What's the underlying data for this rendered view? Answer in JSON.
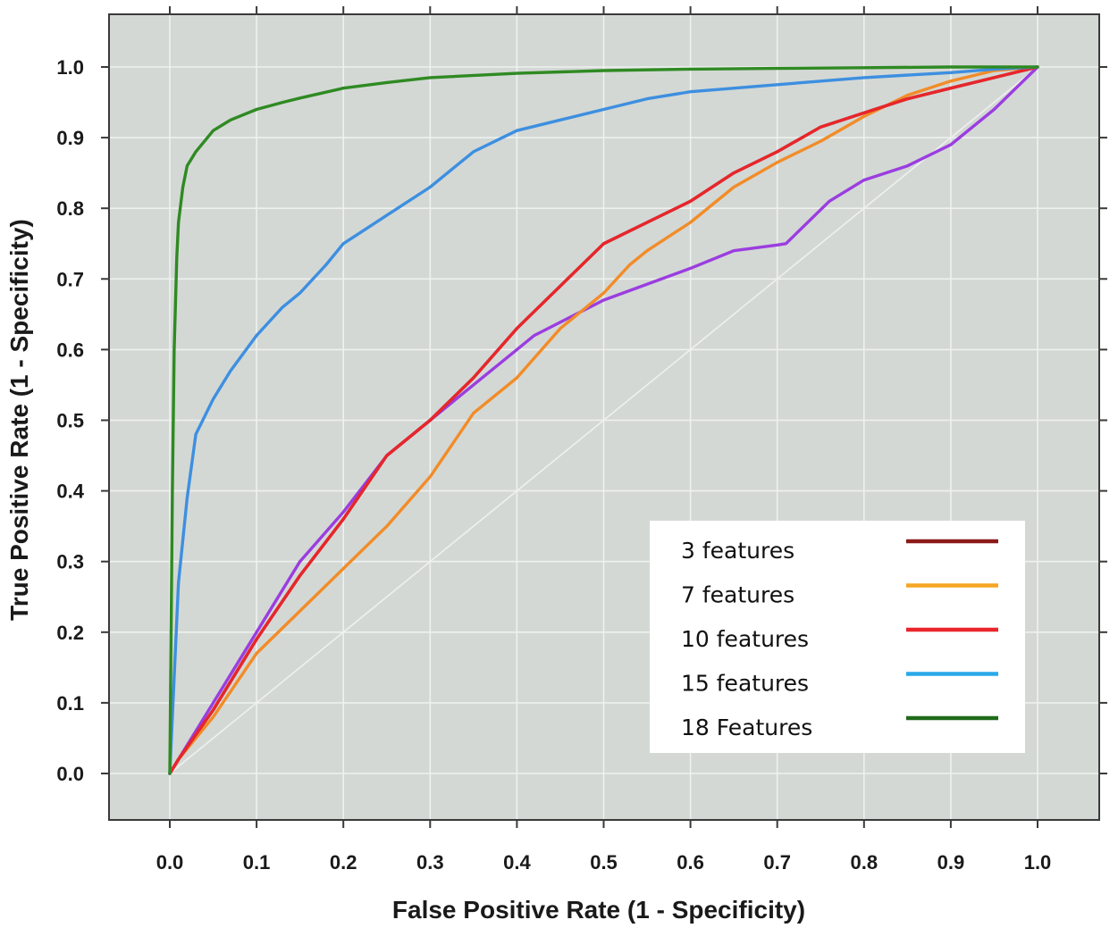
{
  "chart_data": {
    "type": "line",
    "title": "",
    "xlabel": "False Positive Rate (1 - Specificity)",
    "ylabel": "True Positive Rate (1 - Specificity)",
    "xlim": [
      0,
      1
    ],
    "ylim": [
      0,
      1
    ],
    "xticks": [
      "0.0",
      "0.1",
      "0.2",
      "0.3",
      "0.4",
      "0.5",
      "0.6",
      "0.7",
      "0.8",
      "0.9",
      "1.0"
    ],
    "yticks": [
      "0.0",
      "0.1",
      "0.2",
      "0.3",
      "0.4",
      "0.5",
      "0.6",
      "0.7",
      "0.8",
      "0.9",
      "1.0"
    ],
    "grid": true,
    "legend_position": "bottom-right",
    "background_color": "#d3d8d5",
    "grid_color": "#eef1ef",
    "series": [
      {
        "name": "3 features",
        "color": "#8b1a1a",
        "legend_color": "#8b1a1a",
        "x": [
          0,
          0.01,
          0.05,
          0.1,
          0.15,
          0.2,
          0.25,
          0.3,
          0.35,
          0.4,
          0.45,
          0.5,
          0.55,
          0.6,
          0.65,
          0.7,
          0.75,
          0.8,
          0.85,
          0.9,
          0.95,
          1.0
        ],
        "y": [
          0,
          0.02,
          0.09,
          0.19,
          0.28,
          0.36,
          0.45,
          0.5,
          0.56,
          0.63,
          0.69,
          0.75,
          0.78,
          0.81,
          0.85,
          0.88,
          0.915,
          0.935,
          0.955,
          0.97,
          0.985,
          1.0
        ]
      },
      {
        "name": "7 features",
        "color": "#f28c28",
        "legend_color": "#f5a623",
        "x": [
          0,
          0.01,
          0.05,
          0.1,
          0.15,
          0.2,
          0.25,
          0.3,
          0.35,
          0.4,
          0.45,
          0.5,
          0.53,
          0.55,
          0.6,
          0.65,
          0.7,
          0.75,
          0.8,
          0.85,
          0.9,
          0.95,
          1.0
        ],
        "y": [
          0,
          0.02,
          0.08,
          0.17,
          0.23,
          0.29,
          0.35,
          0.42,
          0.51,
          0.56,
          0.63,
          0.68,
          0.72,
          0.74,
          0.78,
          0.83,
          0.865,
          0.895,
          0.93,
          0.96,
          0.98,
          0.995,
          1.0
        ]
      },
      {
        "name": "10 features",
        "color": "#e8262b",
        "legend_color": "#e8262b",
        "x": [
          0,
          0.01,
          0.05,
          0.1,
          0.15,
          0.2,
          0.25,
          0.3,
          0.35,
          0.4,
          0.45,
          0.5,
          0.55,
          0.6,
          0.65,
          0.7,
          0.75,
          0.8,
          0.85,
          0.9,
          0.95,
          1.0
        ],
        "y": [
          0,
          0.02,
          0.09,
          0.19,
          0.28,
          0.36,
          0.45,
          0.5,
          0.56,
          0.63,
          0.69,
          0.75,
          0.78,
          0.81,
          0.85,
          0.88,
          0.915,
          0.935,
          0.955,
          0.97,
          0.985,
          1.0
        ]
      },
      {
        "name": "15 features",
        "color": "#3d8fe0",
        "legend_color": "#29a8e8",
        "x": [
          0,
          0.01,
          0.02,
          0.03,
          0.05,
          0.07,
          0.1,
          0.13,
          0.15,
          0.18,
          0.2,
          0.25,
          0.3,
          0.33,
          0.35,
          0.4,
          0.45,
          0.5,
          0.55,
          0.6,
          0.7,
          0.8,
          0.9,
          0.95,
          1.0
        ],
        "y": [
          0,
          0.27,
          0.39,
          0.48,
          0.53,
          0.57,
          0.62,
          0.66,
          0.68,
          0.72,
          0.75,
          0.79,
          0.83,
          0.86,
          0.88,
          0.91,
          0.925,
          0.94,
          0.955,
          0.965,
          0.975,
          0.985,
          0.992,
          0.997,
          1.0
        ]
      },
      {
        "name": "18 Features",
        "color": "#2f8a22",
        "legend_color": "#1f6b1a",
        "x": [
          0,
          0.003,
          0.005,
          0.008,
          0.01,
          0.015,
          0.02,
          0.03,
          0.05,
          0.07,
          0.1,
          0.13,
          0.15,
          0.2,
          0.25,
          0.3,
          0.4,
          0.5,
          0.6,
          0.7,
          0.8,
          0.9,
          1.0
        ],
        "y": [
          0,
          0.4,
          0.6,
          0.73,
          0.78,
          0.83,
          0.86,
          0.88,
          0.91,
          0.925,
          0.94,
          0.95,
          0.956,
          0.97,
          0.978,
          0.985,
          0.991,
          0.995,
          0.997,
          0.998,
          0.999,
          1.0,
          1.0
        ]
      },
      {
        "name": "",
        "color": "#9b3de0",
        "legend_color": "",
        "x": [
          0,
          0.01,
          0.05,
          0.1,
          0.15,
          0.2,
          0.25,
          0.3,
          0.35,
          0.4,
          0.42,
          0.5,
          0.6,
          0.65,
          0.7,
          0.71,
          0.76,
          0.8,
          0.85,
          0.9,
          0.95,
          1.0
        ],
        "y": [
          0,
          0.02,
          0.1,
          0.2,
          0.3,
          0.37,
          0.45,
          0.5,
          0.55,
          0.6,
          0.62,
          0.67,
          0.715,
          0.74,
          0.748,
          0.75,
          0.81,
          0.84,
          0.86,
          0.89,
          0.94,
          1.0
        ]
      }
    ]
  }
}
